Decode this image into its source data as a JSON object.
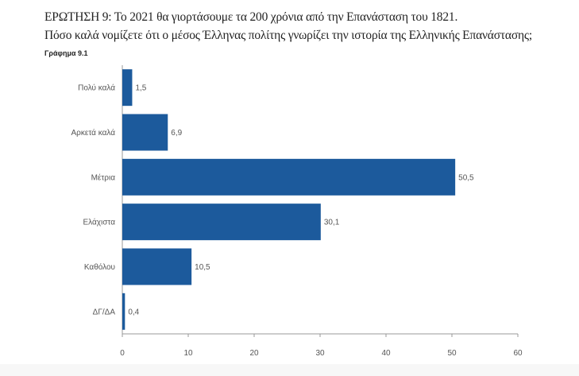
{
  "header": {
    "question": "ΕΡΩΤΗΣΗ 9: Το 2021 θα γιορτάσουμε τα 200 χρόνια από την Επανάσταση του 1821.",
    "question2": "Πόσο καλά νομίζετε ότι ο μέσος Έλληνας πολίτης γνωρίζει την ιστορία της Ελληνικής Επανάστασης;",
    "figure_label": "Γράφημα 9.1"
  },
  "chart_data": {
    "type": "bar",
    "orientation": "horizontal",
    "title": "Γράφημα 9.1",
    "categories": [
      "Πολύ καλά",
      "Αρκετά καλά",
      "Μέτρια",
      "Ελάχιστα",
      "Καθόλου",
      "ΔΓ/ΔΑ"
    ],
    "values": [
      1.5,
      6.9,
      50.5,
      30.1,
      10.5,
      0.4
    ],
    "value_labels": [
      "1,5",
      "6,9",
      "50,5",
      "30,1",
      "10,5",
      "0,4"
    ],
    "xlim": [
      0,
      60
    ],
    "xticks": [
      "0",
      "10",
      "20",
      "30",
      "40",
      "50",
      "60"
    ],
    "xlabel": "",
    "ylabel": "",
    "grid": false,
    "bar_color": "#1c5a9c"
  }
}
